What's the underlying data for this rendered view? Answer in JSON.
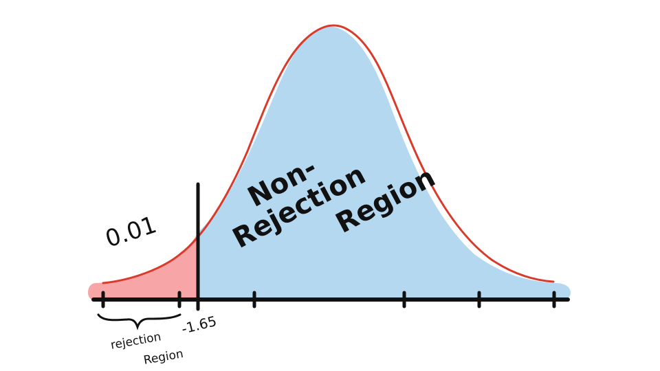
{
  "diagram": {
    "alpha_label": "0.01",
    "critical_value_label": "-1.65",
    "rejection_label": {
      "line1": "rejection",
      "line2": "Region"
    },
    "non_rejection_label": {
      "line1": "Non-",
      "line2": "Rejection",
      "line3": "Region"
    },
    "colors": {
      "rejection_fill": "#f8a5a8",
      "non_rejection_fill": "#b5d8f1",
      "curve": "#d93a2a",
      "axis": "#111111"
    }
  }
}
